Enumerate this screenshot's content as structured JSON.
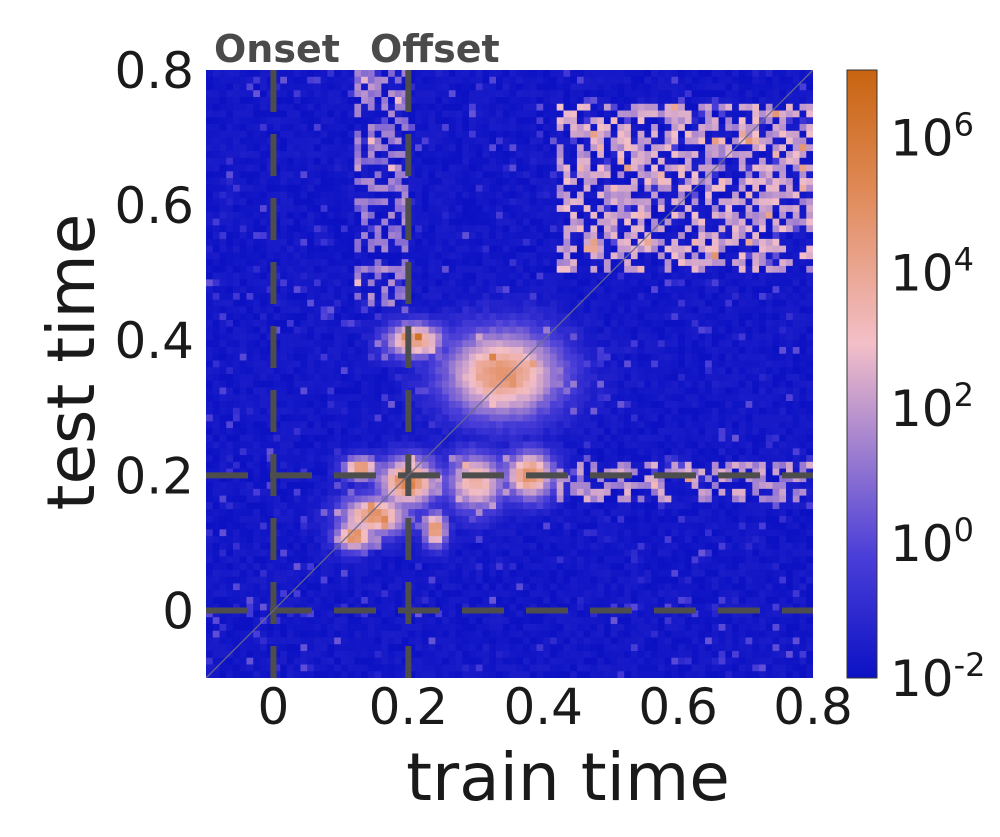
{
  "chart_data": {
    "type": "heatmap",
    "xlabel": "train time",
    "ylabel": "test time",
    "xlim": [
      -0.1,
      0.8
    ],
    "ylim": [
      -0.1,
      0.8
    ],
    "x_ticks": [
      "0",
      "0.2",
      "0.4",
      "0.6",
      "0.8"
    ],
    "x_tick_values": [
      0,
      0.2,
      0.4,
      0.6,
      0.8
    ],
    "y_ticks": [
      "0",
      "0.2",
      "0.4",
      "0.6",
      "0.8"
    ],
    "y_tick_values": [
      0,
      0.2,
      0.4,
      0.6,
      0.8
    ],
    "event_markers": [
      {
        "label": "Onset",
        "time": 0
      },
      {
        "label": "Offset",
        "time": 0.2
      }
    ],
    "diagonal": true,
    "colorbar": {
      "scale": "log",
      "range": [
        0.01,
        10000000
      ],
      "tick_values": [
        0.01,
        1,
        100,
        10000,
        1000000
      ],
      "tick_labels": [
        {
          "base": "10",
          "exp": "-2"
        },
        {
          "base": "10",
          "exp": "0"
        },
        {
          "base": "10",
          "exp": "2"
        },
        {
          "base": "10",
          "exp": "4"
        },
        {
          "base": "10",
          "exp": "6"
        }
      ],
      "colors": [
        "#0c12c4",
        "#4a3ed8",
        "#f3bfc8",
        "#e08a58",
        "#c86410"
      ]
    },
    "hotspots": [
      {
        "x": 0.2,
        "y": 0.19,
        "log10": 5.6,
        "sx": 0.03,
        "sy": 0.025
      },
      {
        "x": 0.15,
        "y": 0.14,
        "log10": 5.0,
        "sx": 0.035,
        "sy": 0.02
      },
      {
        "x": 0.12,
        "y": 0.11,
        "log10": 5.2,
        "sx": 0.02,
        "sy": 0.015
      },
      {
        "x": 0.13,
        "y": 0.21,
        "log10": 5.3,
        "sx": 0.018,
        "sy": 0.012
      },
      {
        "x": 0.24,
        "y": 0.12,
        "log10": 5.1,
        "sx": 0.012,
        "sy": 0.018
      },
      {
        "x": 0.21,
        "y": 0.4,
        "log10": 4.7,
        "sx": 0.03,
        "sy": 0.018
      },
      {
        "x": 0.34,
        "y": 0.35,
        "log10": 4.8,
        "sx": 0.06,
        "sy": 0.045
      },
      {
        "x": 0.38,
        "y": 0.2,
        "log10": 5.0,
        "sx": 0.025,
        "sy": 0.025
      },
      {
        "x": 0.3,
        "y": 0.19,
        "log10": 3.8,
        "sx": 0.03,
        "sy": 0.03
      }
    ],
    "diffuse_regions": [
      {
        "x0": 0.42,
        "x1": 0.8,
        "y0": 0.5,
        "y1": 0.75,
        "log10": 3.0
      },
      {
        "x0": 0.42,
        "x1": 0.8,
        "y0": 0.16,
        "y1": 0.22,
        "log10": 2.5
      },
      {
        "x0": 0.12,
        "x1": 0.2,
        "y0": 0.45,
        "y1": 0.8,
        "log10": 1.8
      }
    ]
  }
}
